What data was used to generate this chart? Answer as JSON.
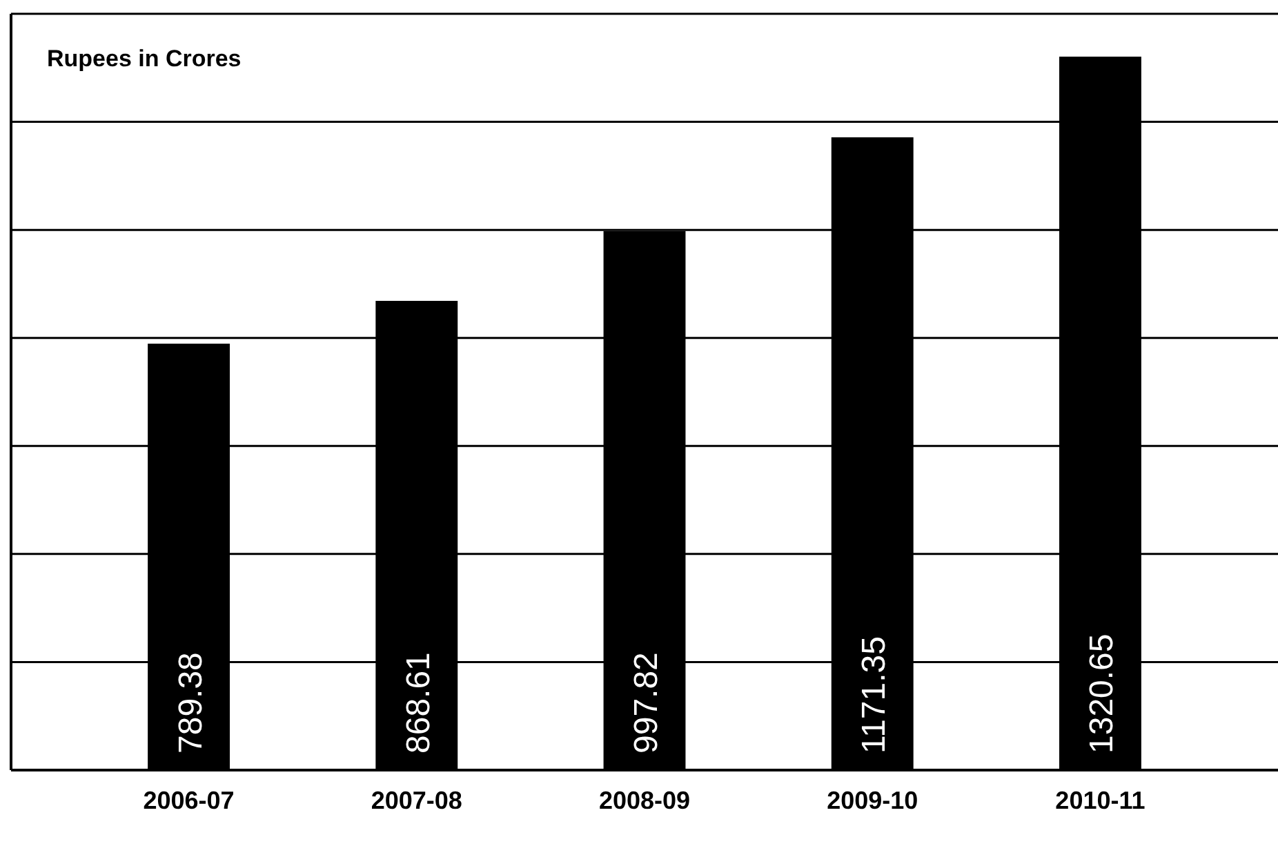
{
  "chart_data": {
    "type": "bar",
    "title": "Rupees  in Crores",
    "categories": [
      "2006-07",
      "2007-08",
      "2008-09",
      "2009-10",
      "2010-11"
    ],
    "values": [
      789.38,
      868.61,
      997.82,
      1171.35,
      1320.65
    ],
    "color": "#000000",
    "data_labels": true,
    "grid": "y",
    "ylim": [
      0,
      1400
    ],
    "yticks": [
      {
        "value": 0,
        "label": null
      },
      {
        "value": 200,
        "label": null
      },
      {
        "value": 400,
        "label": null
      },
      {
        "value": 600,
        "label": null
      },
      {
        "value": 800,
        "label": null
      },
      {
        "value": 1000,
        "label": null
      },
      {
        "value": 1200,
        "label": null
      },
      {
        "value": 1400,
        "label": null
      }
    ],
    "tick_labels": "x"
  }
}
